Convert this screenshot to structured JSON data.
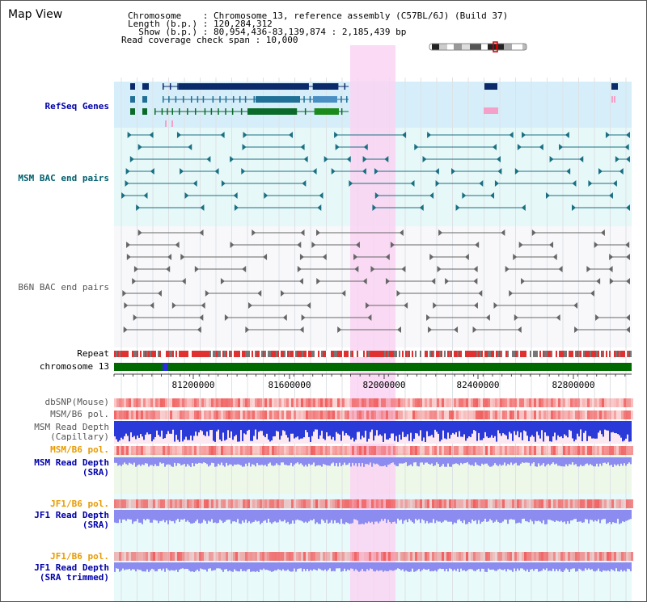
{
  "title": "Map View",
  "info": {
    "chromosome": "Chromosome    : Chromosome 13, reference assembly (C57BL/6J) (Build 37)",
    "length": "Length (b.p.) : 120,284,312",
    "show": "  Show (b.p.) : 80,954,436-83,139,874 : 2,185,439 bp",
    "coverage": "Read coverage check span : 10,000"
  },
  "labels": {
    "refseq": "RefSeq Genes",
    "msm_bac": "MSM BAC end pairs",
    "b6n_bac": "B6N BAC end pairs",
    "repeat": "Repeat",
    "chromosome": "chromosome 13",
    "dbsnp": "dbSNP(Mouse)",
    "msm_b6_pol": "MSM/B6 pol.",
    "msm_read_depth_cap": "MSM Read Depth\n(Capillary)",
    "msm_b6_pol2": "MSM/B6 pol.",
    "msm_read_depth_sra": "MSM Read Depth\n(SRA)",
    "jf1_b6_pol": "JF1/B6 pol.",
    "jf1_read_depth_sra": "JF1 Read Depth\n(SRA)",
    "jf1_b6_pol2": "JF1/B6 pol.",
    "jf1_read_depth_trim": "JF1 Read Depth\n(SRA trimmed)"
  },
  "axis": {
    "ticks": [
      "81200000",
      "81600000",
      "82000000",
      "82400000",
      "82800000"
    ]
  },
  "colors": {
    "refseq_bg": "#d6eefa",
    "bac_bg": "#e6f8f8",
    "highlight": "#f9d4f2",
    "chromosome_bar": "#006a00",
    "snp_red": "#f06060",
    "depth_blue": "#2a3ad8",
    "depth_light": "#8c8cf0"
  }
}
